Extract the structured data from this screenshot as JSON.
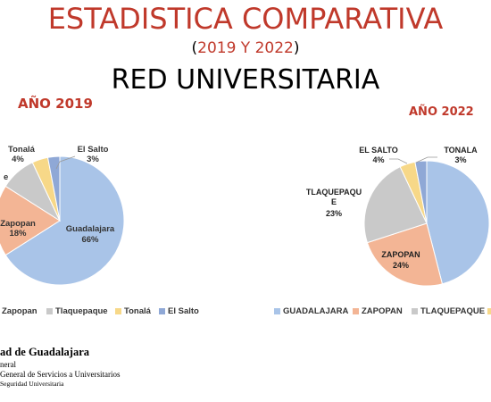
{
  "header": {
    "title": "ESTADISTICA COMPARATIVA",
    "subtitle_open": "(",
    "subtitle_years": "2019 Y 2022",
    "subtitle_close": ")",
    "heading": "RED UNIVERSITARIA"
  },
  "colors": {
    "guadalajara": "#a9c4e8",
    "zapopan": "#f3b595",
    "tlaquepaque": "#c9c9c9",
    "tonala": "#f7d888",
    "el_salto": "#8fa8d6"
  },
  "chart_data": [
    {
      "type": "pie",
      "title": "AÑO 2019",
      "slices": [
        {
          "name": "Guadalajara",
          "value": 66,
          "label": "66%"
        },
        {
          "name": "Zapopan",
          "value": 18,
          "label": "18%"
        },
        {
          "name": "Tlaquepaque",
          "value": 9
        },
        {
          "name": "Tonalá",
          "value": 4,
          "label": "4%"
        },
        {
          "name": "El Salto",
          "value": 3,
          "label": "3%"
        }
      ],
      "legend_visible": [
        "Zapopan",
        "Tlaquepaque",
        "Tonalá",
        "El Salto"
      ],
      "legend": "bottom"
    },
    {
      "type": "pie",
      "title": "AÑO 2022",
      "slices": [
        {
          "name": "GUADALAJARA",
          "value": 46
        },
        {
          "name": "ZAPOPAN",
          "value": 24,
          "label": "24%"
        },
        {
          "name": "TLAQUEPAQUE",
          "value": 23,
          "label": "23%"
        },
        {
          "name": "EL SALTO",
          "value": 4,
          "label": "4%"
        },
        {
          "name": "TONALA",
          "value": 3,
          "label": "3%"
        }
      ],
      "legend_visible": [
        "GUADALAJARA",
        "ZAPOPAN",
        "TLAQUEPAQUE"
      ],
      "legend": "bottom"
    }
  ],
  "labels2019": {
    "guadalajara": "Guadalajara",
    "guadalajara_pct": "66%",
    "zapopan": "Zapopan",
    "zapopan_pct": "18%",
    "tlaquepaque_partial": "e",
    "tonala": "Tonalá",
    "tonala_pct": "4%",
    "el_salto": "El Salto",
    "el_salto_pct": "3%"
  },
  "labels2022": {
    "tonala": "TONALA",
    "tonala_pct": "3%",
    "el_salto": "EL SALTO",
    "el_salto_pct": "4%",
    "tlaquepaque_line1": "TLAQUEPAQU",
    "tlaquepaque_line2": "E",
    "tlaquepaque_pct": "23%",
    "zapopan": "ZAPOPAN",
    "zapopan_pct": "24%"
  },
  "footer": {
    "line1": "ad de Guadalajara",
    "line2": "neral",
    "line3": " General de Servicios a Universitarios",
    "line4": "Seguridad Universitaria"
  }
}
